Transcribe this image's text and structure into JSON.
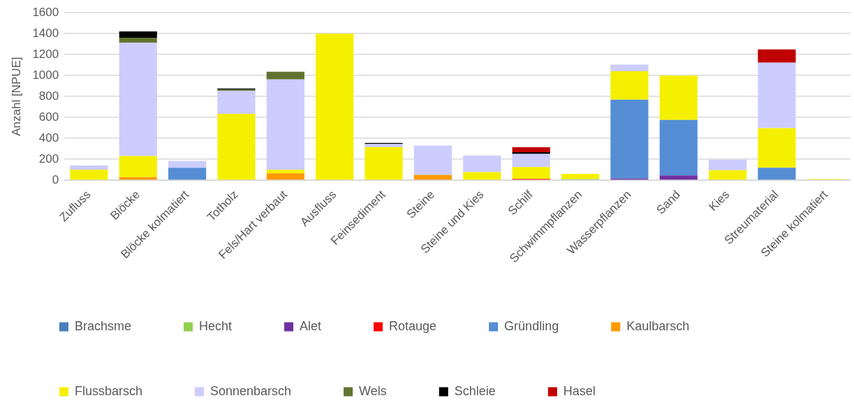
{
  "chart_data": {
    "type": "bar",
    "stacked": true,
    "ylabel": "Anzahl [NPUE]",
    "categories": [
      "Zufluss",
      "Blöcke",
      "Blöcke kolmatiert",
      "Totholz",
      "Fels/Hart verbaut",
      "Ausfluss",
      "Feinsediment",
      "Steine",
      "Steine und Kies",
      "Schilf",
      "Schwimmpflanzen",
      "Wasserpflanzen",
      "Sand",
      "Kies",
      "Streumaterial",
      "Steine kolmatiert"
    ],
    "series": [
      {
        "name": "Brachsme",
        "color": "#4a7ebb",
        "values": [
          0,
          0,
          0,
          0,
          0,
          0,
          0,
          0,
          0,
          0,
          0,
          0,
          0,
          0,
          0,
          0
        ]
      },
      {
        "name": "Hecht",
        "color": "#92d050",
        "values": [
          5,
          0,
          0,
          0,
          0,
          0,
          0,
          0,
          0,
          0,
          11,
          0,
          0,
          0,
          0,
          0
        ]
      },
      {
        "name": "Alet",
        "color": "#7030a0",
        "values": [
          0,
          0,
          0,
          0,
          0,
          0,
          0,
          0,
          0,
          0,
          0,
          16,
          46,
          0,
          0,
          0
        ]
      },
      {
        "name": "Rotauge",
        "color": "#ff0000",
        "values": [
          0,
          0,
          0,
          0,
          0,
          0,
          0,
          0,
          0,
          12,
          0,
          0,
          0,
          0,
          0,
          0
        ]
      },
      {
        "name": "Gründling",
        "color": "#558ed5",
        "values": [
          0,
          0,
          119,
          0,
          0,
          0,
          0,
          0,
          0,
          0,
          0,
          753,
          529,
          0,
          119,
          0
        ]
      },
      {
        "name": "Kaulbarsch",
        "color": "#ff9900",
        "values": [
          0,
          28,
          0,
          0,
          66,
          0,
          0,
          50,
          5,
          0,
          0,
          0,
          0,
          0,
          0,
          0
        ]
      },
      {
        "name": "Flussbarsch",
        "color": "#f5f000",
        "values": [
          96,
          203,
          0,
          634,
          35,
          1400,
          315,
          0,
          72,
          114,
          50,
          272,
          424,
          96,
          378,
          11
        ]
      },
      {
        "name": "Sonnenbarsch",
        "color": "#ccccff",
        "values": [
          40,
          1081,
          64,
          220,
          862,
          0,
          32,
          281,
          158,
          125,
          0,
          64,
          0,
          100,
          626,
          0
        ]
      },
      {
        "name": "Wels",
        "color": "#607430",
        "values": [
          0,
          50,
          0,
          11,
          73,
          0,
          0,
          0,
          0,
          0,
          0,
          0,
          0,
          0,
          0,
          0
        ]
      },
      {
        "name": "Schleie",
        "color": "#000000",
        "values": [
          0,
          60,
          0,
          11,
          0,
          0,
          9,
          0,
          0,
          16,
          0,
          0,
          0,
          0,
          0,
          0
        ]
      },
      {
        "name": "Hasel",
        "color": "#c00000",
        "values": [
          0,
          0,
          0,
          0,
          0,
          0,
          0,
          0,
          0,
          48,
          0,
          0,
          0,
          0,
          127,
          0
        ]
      }
    ],
    "ylim": [
      0,
      1600
    ],
    "yticks": [
      0,
      200,
      400,
      600,
      800,
      1000,
      1200,
      1400,
      1600
    ],
    "grid": "y",
    "legend": "bottom"
  }
}
